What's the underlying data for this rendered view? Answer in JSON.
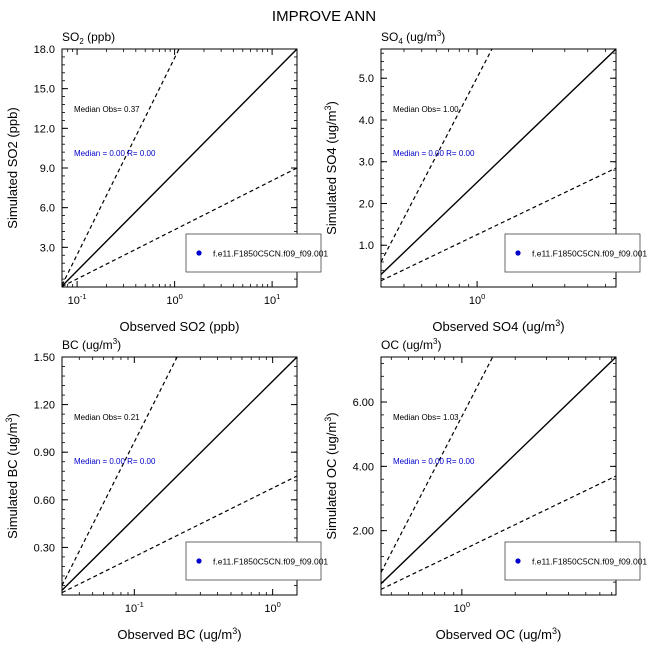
{
  "page": {
    "title": "IMPROVE ANN"
  },
  "chart_data": [
    {
      "type": "scatter",
      "title": "SO2 (ppb)",
      "title_main": "SO",
      "title_sub": "2",
      "title_rest": " (ppb)",
      "xlabel": "Observed SO2 (ppb)",
      "ylabel": "Simulated SO2 (ppb)",
      "x_scale": "log",
      "xlim": [
        0.07,
        18.0
      ],
      "ylim": [
        0,
        18.0
      ],
      "x_ticks": [
        0.1,
        1,
        10
      ],
      "x_tick_labels": [
        {
          "base": "10",
          "exp": "-1"
        },
        {
          "base": "10",
          "exp": "0"
        },
        {
          "base": "10",
          "exp": "1"
        }
      ],
      "y_ticks": [
        3,
        6,
        9,
        12,
        15,
        18
      ],
      "y_tick_labels": [
        "3.0",
        "6.0",
        "9.0",
        "12.0",
        "15.0",
        "18.0"
      ],
      "reference_lines": [
        {
          "name": "1:1",
          "factor": 1,
          "style": "solid"
        },
        {
          "name": "2:1",
          "factor": 2,
          "style": "dashed"
        },
        {
          "name": "1:2",
          "factor": 0.5,
          "style": "dashed"
        }
      ],
      "annotations": [
        {
          "text": "Median Obs= 0.37",
          "color": "#000000"
        },
        {
          "text": "Median = 0.00 R= 0.00",
          "color": "#0000cc"
        }
      ],
      "legend": {
        "position": "bottom-right",
        "label": "f.e11.F1850C5CN.f09_f09.001",
        "marker_color": "#0000cc"
      },
      "series": [
        {
          "name": "f.e11.F1850C5CN.f09_f09.001",
          "points": []
        }
      ]
    },
    {
      "type": "scatter",
      "title": "SO4 (ug/m3)",
      "title_main": "SO",
      "title_sub": "4",
      "title_rest": " (ug/m",
      "title_sup": "3",
      "title_close": ")",
      "xlabel": "Observed SO4 (ug/m3)",
      "xlabel_main": "Observed SO4 (ug/m",
      "xlabel_sup": "3",
      "ylabel": "Simulated SO4 (ug/m3)",
      "ylabel_main": "Simulated SO4 (ug/m",
      "ylabel_sup": "3",
      "x_scale": "log",
      "xlim": [
        0.3,
        5.7
      ],
      "ylim": [
        0,
        5.7
      ],
      "x_ticks": [
        1
      ],
      "x_tick_labels": [
        {
          "base": "10",
          "exp": "0"
        }
      ],
      "y_ticks": [
        1,
        2,
        3,
        4,
        5
      ],
      "y_tick_labels": [
        "1.0",
        "2.0",
        "3.0",
        "4.0",
        "5.0"
      ],
      "reference_lines": [
        {
          "name": "1:1",
          "factor": 1,
          "style": "solid"
        },
        {
          "name": "2:1",
          "factor": 2,
          "style": "dashed"
        },
        {
          "name": "1:2",
          "factor": 0.5,
          "style": "dashed"
        }
      ],
      "annotations": [
        {
          "text": "Median Obs= 1.00",
          "color": "#000000"
        },
        {
          "text": "Median = 0.00 R= 0.00",
          "color": "#0000cc"
        }
      ],
      "legend": {
        "position": "bottom-right",
        "label": "f.e11.F1850C5CN.f09_f09.001",
        "marker_color": "#0000cc"
      },
      "series": [
        {
          "name": "f.e11.F1850C5CN.f09_f09.001",
          "points": []
        }
      ]
    },
    {
      "type": "scatter",
      "title": "BC (ug/m3)",
      "title_main": "BC (ug/m",
      "title_sup": "3",
      "title_close": ")",
      "xlabel": "Observed BC (ug/m3)",
      "xlabel_main": "Observed BC (ug/m",
      "xlabel_sup": "3",
      "ylabel": "Simulated BC (ug/m3)",
      "ylabel_main": "Simulated BC (ug/m",
      "ylabel_sup": "3",
      "x_scale": "log",
      "xlim": [
        0.03,
        1.5
      ],
      "ylim": [
        0,
        1.5
      ],
      "x_ticks": [
        0.1,
        1
      ],
      "x_tick_labels": [
        {
          "base": "10",
          "exp": "-1"
        },
        {
          "base": "10",
          "exp": "0"
        }
      ],
      "y_ticks": [
        0.3,
        0.6,
        0.9,
        1.2,
        1.5
      ],
      "y_tick_labels": [
        "0.30",
        "0.60",
        "0.90",
        "1.20",
        "1.50"
      ],
      "reference_lines": [
        {
          "name": "1:1",
          "factor": 1,
          "style": "solid"
        },
        {
          "name": "2:1",
          "factor": 2,
          "style": "dashed"
        },
        {
          "name": "1:2",
          "factor": 0.5,
          "style": "dashed"
        }
      ],
      "annotations": [
        {
          "text": "Median Obs= 0.21",
          "color": "#000000"
        },
        {
          "text": "Median = 0.00 R= 0.00",
          "color": "#0000cc"
        }
      ],
      "legend": {
        "position": "bottom-right",
        "label": "f.e11.F1850C5CN.f09_f09.001",
        "marker_color": "#0000cc"
      },
      "series": [
        {
          "name": "f.e11.F1850C5CN.f09_f09.001",
          "points": []
        }
      ]
    },
    {
      "type": "scatter",
      "title": "OC (ug/m3)",
      "title_main": "OC (ug/m",
      "title_sup": "3",
      "title_close": ")",
      "xlabel": "Observed OC (ug/m3)",
      "xlabel_main": "Observed OC (ug/m",
      "xlabel_sup": "3",
      "ylabel": "Simulated OC (ug/m3)",
      "ylabel_main": "Simulated OC (ug/m",
      "ylabel_sup": "3",
      "x_scale": "log",
      "xlim": [
        0.35,
        7.4
      ],
      "ylim": [
        0,
        7.4
      ],
      "x_ticks": [
        1
      ],
      "x_tick_labels": [
        {
          "base": "10",
          "exp": "0"
        }
      ],
      "y_ticks": [
        2,
        4,
        6
      ],
      "y_tick_labels": [
        "2.00",
        "4.00",
        "6.00"
      ],
      "reference_lines": [
        {
          "name": "1:1",
          "factor": 1,
          "style": "solid"
        },
        {
          "name": "2:1",
          "factor": 2,
          "style": "dashed"
        },
        {
          "name": "1:2",
          "factor": 0.5,
          "style": "dashed"
        }
      ],
      "annotations": [
        {
          "text": "Median Obs= 1.03",
          "color": "#000000"
        },
        {
          "text": "Median = 0.00 R= 0.00",
          "color": "#0000cc"
        }
      ],
      "legend": {
        "position": "bottom-right",
        "label": "f.e11.F1850C5CN.f09_f09.001",
        "marker_color": "#0000cc"
      },
      "series": [
        {
          "name": "f.e11.F1850C5CN.f09_f09.001",
          "points": []
        }
      ]
    }
  ]
}
